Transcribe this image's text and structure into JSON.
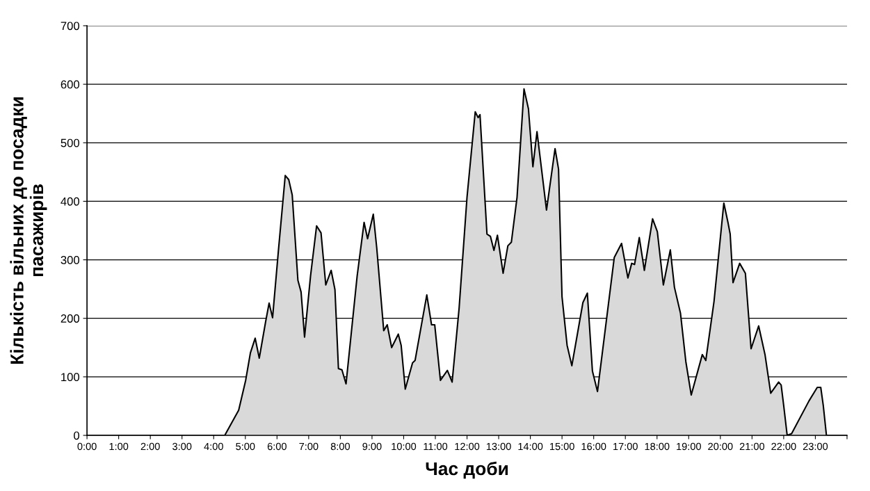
{
  "chart_data": {
    "type": "area",
    "xlabel": "Час доби",
    "ylabel": "Кількість вільних до посадки\nпасажирів",
    "xlim": [
      0,
      24
    ],
    "ylim": [
      0,
      700
    ],
    "yticks": [
      0,
      100,
      200,
      300,
      400,
      500,
      600,
      700
    ],
    "xticks": [
      {
        "value": 0,
        "label": "0:00"
      },
      {
        "value": 1,
        "label": "1:00"
      },
      {
        "value": 2,
        "label": "2:00"
      },
      {
        "value": 3,
        "label": "3:00"
      },
      {
        "value": 4,
        "label": "4:00"
      },
      {
        "value": 5,
        "label": "5:00"
      },
      {
        "value": 6,
        "label": "6:00"
      },
      {
        "value": 7,
        "label": "7:00"
      },
      {
        "value": 8,
        "label": "8:00"
      },
      {
        "value": 9,
        "label": "9:00"
      },
      {
        "value": 10,
        "label": "10:00"
      },
      {
        "value": 11,
        "label": "11:00"
      },
      {
        "value": 12,
        "label": "12:00"
      },
      {
        "value": 13,
        "label": "13:00"
      },
      {
        "value": 14,
        "label": "14:00"
      },
      {
        "value": 15,
        "label": "15:00"
      },
      {
        "value": 16,
        "label": "16:00"
      },
      {
        "value": 17,
        "label": "17:00"
      },
      {
        "value": 18,
        "label": "18:00"
      },
      {
        "value": 19,
        "label": "19:00"
      },
      {
        "value": 20,
        "label": "20:00"
      },
      {
        "value": 21,
        "label": "21:00"
      },
      {
        "value": 22,
        "label": "22:00"
      },
      {
        "value": 23,
        "label": "23:00"
      },
      {
        "value": 24,
        "label": null
      }
    ],
    "grid": "y",
    "legend": false,
    "series": [
      {
        "color": "#d9d9d9",
        "x": [
          0,
          4.35,
          4.79,
          5.01,
          5.16,
          5.31,
          5.44,
          5.64,
          5.75,
          5.86,
          6.04,
          6.26,
          6.37,
          6.48,
          6.66,
          6.76,
          6.87,
          7.06,
          7.25,
          7.39,
          7.54,
          7.71,
          7.83,
          7.94,
          8.05,
          8.18,
          8.53,
          8.75,
          8.86,
          9.04,
          9.15,
          9.37,
          9.48,
          9.62,
          9.83,
          9.92,
          10.05,
          10.28,
          10.36,
          10.73,
          10.88,
          10.98,
          11.16,
          11.38,
          11.53,
          11.75,
          12.0,
          12.26,
          12.35,
          12.41,
          12.63,
          12.74,
          12.85,
          12.96,
          13.14,
          13.29,
          13.4,
          13.58,
          13.8,
          13.94,
          14.08,
          14.21,
          14.51,
          14.78,
          14.89,
          15.0,
          15.16,
          15.31,
          15.66,
          15.8,
          15.96,
          16.12,
          16.65,
          16.88,
          17.08,
          17.2,
          17.29,
          17.44,
          17.6,
          17.86,
          18.01,
          18.2,
          18.42,
          18.55,
          18.74,
          18.91,
          19.08,
          19.43,
          19.54,
          19.8,
          20.11,
          20.24,
          20.31,
          20.4,
          20.61,
          20.79,
          20.97,
          21.21,
          21.41,
          21.59,
          21.84,
          21.92,
          22.0,
          22.11,
          22.25,
          22.8,
          23.06,
          23.17,
          23.25,
          23.35,
          24
        ],
        "values": [
          0,
          0,
          43,
          94,
          141,
          166,
          132,
          194,
          226,
          201,
          313,
          444,
          437,
          411,
          265,
          245,
          168,
          273,
          358,
          346,
          257,
          282,
          249,
          114,
          112,
          88,
          272,
          364,
          336,
          378,
          320,
          179,
          189,
          150,
          173,
          154,
          79,
          124,
          128,
          240,
          189,
          189,
          94,
          111,
          91,
          217,
          407,
          553,
          543,
          548,
          344,
          340,
          316,
          342,
          277,
          324,
          330,
          407,
          592,
          558,
          459,
          519,
          385,
          490,
          455,
          237,
          154,
          119,
          227,
          243,
          110,
          75,
          304,
          328,
          269,
          294,
          292,
          338,
          282,
          370,
          348,
          257,
          317,
          253,
          209,
          126,
          69,
          138,
          128,
          229,
          397,
          364,
          344,
          261,
          294,
          277,
          148,
          187,
          138,
          72,
          91,
          86,
          51,
          0,
          3,
          59,
          82,
          82,
          51,
          0,
          0
        ]
      }
    ]
  }
}
